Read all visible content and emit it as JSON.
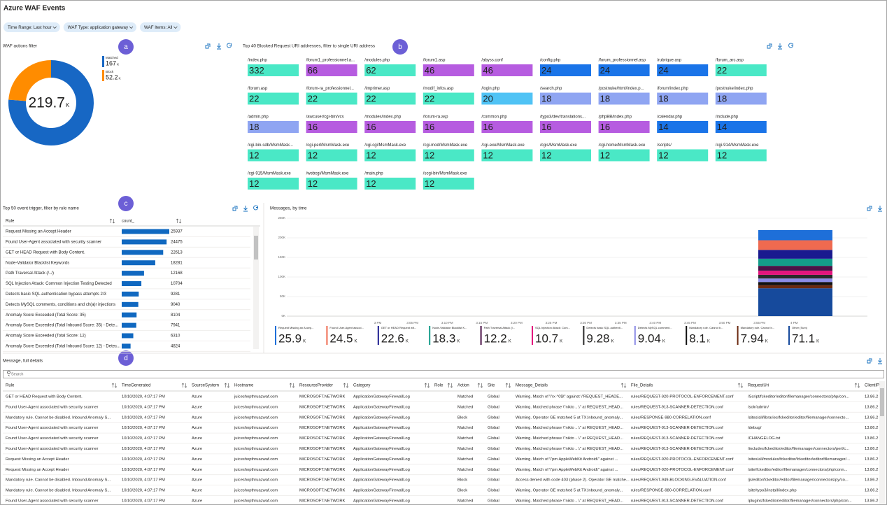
{
  "header": {
    "title": "Azure WAF Events",
    "filters": [
      "Time Range: Last hour",
      "WAF Type: application gateway",
      "WAF Items: All"
    ]
  },
  "markers": [
    "a",
    "b",
    "c",
    "d"
  ],
  "waf_actions": {
    "title": "WAF actions filter",
    "total": 219.7,
    "unit": "K",
    "items": [
      {
        "label": "Matched",
        "value": 167,
        "color": "#1767c4"
      },
      {
        "label": "Block",
        "value": 52.2,
        "color": "#ff8c00"
      }
    ]
  },
  "blocked_uris": {
    "title": "Top 40 Blocked Request URI addresses, filter to single URI address",
    "tiles": [
      {
        "uri": "/index.php",
        "count": 332,
        "color": "#4ae8c6"
      },
      {
        "uri": "/forum1_professionnel.a...",
        "count": 66,
        "color": "#b65ce0"
      },
      {
        "uri": "/modules.php",
        "count": 62,
        "color": "#4ae8c6"
      },
      {
        "uri": "/forum1.asp",
        "count": 46,
        "color": "#b65ce0"
      },
      {
        "uri": "/abyss.conf",
        "count": 46,
        "color": "#b65ce0"
      },
      {
        "uri": "/config.php",
        "count": 24,
        "color": "#1a74e8"
      },
      {
        "uri": "/forum_professionnel.asp",
        "count": 24,
        "color": "#1a74e8"
      },
      {
        "uri": "/rubrique.asp",
        "count": 24,
        "color": "#1a74e8"
      },
      {
        "uri": "/forum_arc.asp",
        "count": 22,
        "color": "#4ae8c6"
      },
      {
        "uri": "/forum.asp",
        "count": 22,
        "color": "#4ae8c6"
      },
      {
        "uri": "/forum-ra_professionnel...",
        "count": 22,
        "color": "#4ae8c6"
      },
      {
        "uri": "/imprimer.asp",
        "count": 22,
        "color": "#4ae8c6"
      },
      {
        "uri": "/modif_infos.asp",
        "count": 22,
        "color": "#4ae8c6"
      },
      {
        "uri": "/login.php",
        "count": 20,
        "color": "#50c3f5"
      },
      {
        "uri": "/search.php",
        "count": 18,
        "color": "#8fa5f2"
      },
      {
        "uri": "/postnuke/html/index.p...",
        "count": 18,
        "color": "#8fa5f2"
      },
      {
        "uri": "/forum/index.php",
        "count": 18,
        "color": "#8fa5f2"
      },
      {
        "uri": "/postnuke/index.php",
        "count": 18,
        "color": "#8fa5f2"
      },
      {
        "uri": "/admin.php",
        "count": 18,
        "color": "#8fa5f2"
      },
      {
        "uri": "/awcuser/cgi-bin/vcs",
        "count": 16,
        "color": "#b65ce0"
      },
      {
        "uri": "/modules/index.php",
        "count": 16,
        "color": "#b65ce0"
      },
      {
        "uri": "/forum-ra.asp",
        "count": 16,
        "color": "#b65ce0"
      },
      {
        "uri": "/common.php",
        "count": 16,
        "color": "#b65ce0"
      },
      {
        "uri": "/typo3/dev/translations...",
        "count": 16,
        "color": "#b65ce0"
      },
      {
        "uri": "/phpBB/index.php",
        "count": 16,
        "color": "#b65ce0"
      },
      {
        "uri": "/calendar.php",
        "count": 14,
        "color": "#1a74e8"
      },
      {
        "uri": "/include.php",
        "count": 14,
        "color": "#1a74e8"
      },
      {
        "uri": "/cgi-bin-sdb/MsmMask...",
        "count": 12,
        "color": "#4ae8c6"
      },
      {
        "uri": "/cgi-perl/MsmMask.exe",
        "count": 12,
        "color": "#4ae8c6"
      },
      {
        "uri": "/cgi.cgi/MsmMask.exe",
        "count": 12,
        "color": "#4ae8c6"
      },
      {
        "uri": "/cgi-mod/MsmMask.exe",
        "count": 12,
        "color": "#4ae8c6"
      },
      {
        "uri": "/cgi-exe/MsmMask.exe",
        "count": 12,
        "color": "#4ae8c6"
      },
      {
        "uri": "/cgis/MsmMask.exe",
        "count": 12,
        "color": "#4ae8c6"
      },
      {
        "uri": "/cgi-home/MsmMask.exe",
        "count": 12,
        "color": "#4ae8c6"
      },
      {
        "uri": "/scripts/",
        "count": 12,
        "color": "#4ae8c6"
      },
      {
        "uri": "/cgi-914/MsmMask.exe",
        "count": 12,
        "color": "#4ae8c6"
      },
      {
        "uri": "/cgi-915/MsmMask.exe",
        "count": 12,
        "color": "#4ae8c6"
      },
      {
        "uri": "/webcgi/MsmMask.exe",
        "count": 12,
        "color": "#4ae8c6"
      },
      {
        "uri": "/main.php",
        "count": 12,
        "color": "#4ae8c6"
      },
      {
        "uri": "/scgi-bin/MsmMask.exe",
        "count": 12,
        "color": "#4ae8c6"
      }
    ]
  },
  "event_triggers": {
    "title": "Top 50 event trigger, filter by rule name",
    "columns": [
      "Rule",
      "count_"
    ],
    "bar_color": "#1068c0",
    "rows": [
      [
        "Request Missing an Accept Header",
        25937
      ],
      [
        "Found User-Agent associated with security scanner",
        24475
      ],
      [
        "GET or HEAD Request with Body Content.",
        22613
      ],
      [
        "Node-Validator Blacklist Keywords",
        18281
      ],
      [
        "Path Traversal Attack (/../)",
        12168
      ],
      [
        "SQL Injection Attack: Common Injection Testing Detected",
        10704
      ],
      [
        "Detects basic SQL authentication bypass attempts 2/3",
        9281
      ],
      [
        "Detects MySQL comments, conditions and ch(a)r injections",
        9040
      ],
      [
        "Anomaly Score Exceeded (Total Score: 35)",
        8104
      ],
      [
        "Anomaly Score Exceeded (Total Inbound Score: 35) - Dete...",
        7941
      ],
      [
        "Anomaly Score Exceeded (Total Score: 12)",
        6310
      ],
      [
        "Anomaly Score Exceeded (Total Inbound Score: 12) - Detec...",
        4824
      ]
    ]
  },
  "messages_chart": {
    "type": "bar",
    "title": "Messages, by time",
    "unit": "K",
    "ylim": [
      0,
      250
    ],
    "yticks": [
      {
        "value": 0,
        "label": "0K"
      },
      {
        "value": 50,
        "label": "50K"
      },
      {
        "value": 100,
        "label": "100K"
      },
      {
        "value": 150,
        "label": "150K"
      },
      {
        "value": 200,
        "label": "200K"
      },
      {
        "value": 250,
        "label": "250K"
      }
    ],
    "x_ticks": [
      "3 PM",
      "3:05 PM",
      "3:10 PM",
      "3:15 PM",
      "3:20 PM",
      "3:25 PM",
      "3:30 PM",
      "3:35 PM",
      "3:40 PM",
      "3:45 PM",
      "3:50 PM",
      "3:55 PM",
      "4 PM"
    ],
    "grid": true,
    "series": [
      {
        "name": "Request Missing an Accep...",
        "color": "#1e6fd9",
        "value": 25.9
      },
      {
        "name": "Found User-Agent associ...",
        "color": "#ef6a50",
        "value": 24.5
      },
      {
        "name": "GET or HEAD Request wit...",
        "color": "#1a1a8f",
        "value": 22.6
      },
      {
        "name": "Node-Validator Blacklist K...",
        "color": "#139c8a",
        "value": 18.3
      },
      {
        "name": "Path Traversal Attack (/...",
        "color": "#4b1248",
        "value": 12.2
      },
      {
        "name": "SQL Injection Attack: Com...",
        "color": "#e3157d",
        "value": 10.7
      },
      {
        "name": "Detects basic SQL authenti...",
        "color": "#2a2a2a",
        "value": 9.28
      },
      {
        "name": "Detects MySQL comment...",
        "color": "#8c8ce6",
        "value": 9.04
      },
      {
        "name": "Mandatory rule. Cannot b...",
        "color": "#111111",
        "value": 8.1
      },
      {
        "name": "Mandatory rule. Cannot b...",
        "color": "#6b2a10",
        "value": 7.94
      },
      {
        "name": "Other (Sum)",
        "color": "#164a9c",
        "value": 71.1
      }
    ]
  },
  "details": {
    "title": "Message, full details",
    "search_placeholder": "Search",
    "columns": [
      "Rule",
      "TimeGenerated",
      "SourceSystem",
      "Hostname",
      "ResourceProvider",
      "Category",
      "Role",
      "Action",
      "Site",
      "Message_Details",
      "File_Details",
      "RequestUri",
      "ClientIP"
    ],
    "rows": [
      [
        "GET or HEAD Request with Body Content.",
        "10/10/2020, 4:07:17 PM",
        "Azure",
        "juiceshopthruazwaf.com",
        "MICROSOFT.NETWORK",
        "ApplicationGatewayFirewallLog",
        null,
        "Matched",
        "Global",
        "Warning. Match of \\\"rx ^0$\\\" against \\\"REQUEST_HEADE...",
        "rules/REQUEST-920-PROTOCOL-ENFORCEMENT.conf",
        "/Script/fckeditor/editor/filemanager/connectors/php/con...",
        "13.86.2"
      ],
      [
        "Found User-Agent associated with security scanner",
        "10/10/2020, 4:07:17 PM",
        "Azure",
        "juiceshopthruazwaf.com",
        "MICROSOFT.NETWORK",
        "ApplicationGatewayFirewallLog",
        null,
        "Matched",
        "Global",
        "Warning. Matched phrase \\\"nikto ...\\\" at REQUEST_HEAD...",
        "rules/REQUEST-913-SCANNER-DETECTION.conf",
        "/solr/admin/",
        "13.86.2"
      ],
      [
        "Mandatory rule. Cannot be disabled. Inbound Anomaly S...",
        "10/10/2020, 4:07:17 PM",
        "Azure",
        "juiceshopthruazwaf.com",
        "MICROSOFT.NETWORK",
        "ApplicationGatewayFirewallLog",
        null,
        "Block",
        "Global",
        "Warning. Operator GE matched 5 at TX:inbound_anomaly...",
        "rules/RESPONSE-980-CORRELATION.conf",
        "/sites/all/libraries/fckeditor/editor/filemanager/connecto...",
        "13.86.2"
      ],
      [
        "Found User-Agent associated with security scanner",
        "10/10/2020, 4:07:17 PM",
        "Azure",
        "juiceshopthruazwaf.com",
        "MICROSOFT.NETWORK",
        "ApplicationGatewayFirewallLog",
        null,
        "Matched",
        "Global",
        "Warning. Matched phrase \\\"nikto ...\\\" at REQUEST_HEAD...",
        "rules/REQUEST-913-SCANNER-DETECTION.conf",
        "/debug/",
        "13.86.2"
      ],
      [
        "Found User-Agent associated with security scanner",
        "10/10/2020, 4:07:17 PM",
        "Azure",
        "juiceshopthruazwaf.com",
        "MICROSOFT.NETWORK",
        "ApplicationGatewayFirewallLog",
        null,
        "Matched",
        "Global",
        "Warning. Matched phrase \\\"nikto ...\\\" at REQUEST_HEAD...",
        "rules/REQUEST-913-SCANNER-DETECTION.conf",
        "/CHANGELOG.txt",
        "13.86.2"
      ],
      [
        "Found User-Agent associated with security scanner",
        "10/10/2020, 4:07:17 PM",
        "Azure",
        "juiceshopthruazwaf.com",
        "MICROSOFT.NETWORK",
        "ApplicationGatewayFirewallLog",
        null,
        "Matched",
        "Global",
        "Warning. Matched phrase \\\"nikto ...\\\" at REQUEST_HEAD...",
        "rules/REQUEST-913-SCANNER-DETECTION.conf",
        "/includes/fckeditor/editor/filemanager/connectors/perl/c...",
        "13.86.2"
      ],
      [
        "Request Missing an Accept Header",
        "10/10/2020, 4:07:17 PM",
        "Azure",
        "juiceshopthruazwaf.com",
        "MICROSOFT.NETWORK",
        "ApplicationGatewayFirewallLog",
        null,
        "Matched",
        "Global",
        "Warning. Match of \\\"pm AppleWebKit Android\\\" against ...",
        "rules/REQUEST-920-PROTOCOL-ENFORCEMENT.conf",
        "/sites/all/modules/fckeditor/fckeditor/editor/filemanager/...",
        "13.86.2"
      ],
      [
        "Request Missing an Accept Header",
        "10/10/2020, 4:07:17 PM",
        "Azure",
        "juiceshopthruazwaf.com",
        "MICROSOFT.NETWORK",
        "ApplicationGatewayFirewallLog",
        null,
        "Matched",
        "Global",
        "Warning. Match of \\\"pm AppleWebKit Android\\\" against ...",
        "rules/REQUEST-920-PROTOCOL-ENFORCEMENT.conf",
        "/site/fckeditor/editor/filemanager/connectors/php/conn...",
        "13.86.2"
      ],
      [
        "Mandatory rule. Cannot be disabled. Inbound Anomaly S...",
        "10/10/2020, 4:07:17 PM",
        "Azure",
        "juiceshopthruazwaf.com",
        "MICROSOFT.NETWORK",
        "ApplicationGatewayFirewallLog",
        null,
        "Block",
        "Global",
        "Access denied with code 403 (phase 2). Operator GE matche...",
        "rules/REQUEST-949-BLOCKING-EVALUATION.conf",
        "/js/editor/fckeditor/editor/filemanager/connectors/py/co...",
        "13.86.2"
      ],
      [
        "Mandatory rule. Cannot be disabled. Inbound Anomaly S...",
        "10/10/2020, 4:07:17 PM",
        "Azure",
        "juiceshopthruazwaf.com",
        "MICROSOFT.NETWORK",
        "ApplicationGatewayFirewallLog",
        null,
        "Block",
        "Global",
        "Warning. Operator GE matched 5 at TX:inbound_anomaly...",
        "rules/RESPONSE-980-CORRELATION.conf",
        "/site/typo3/install/index.php",
        "13.86.2"
      ],
      [
        "Found User-Agent associated with security scanner",
        "10/10/2020, 4:07:17 PM",
        "Azure",
        "juiceshopthruazwaf.com",
        "MICROSOFT.NETWORK",
        "ApplicationGatewayFirewallLog",
        null,
        "Matched",
        "Global",
        "Warning. Matched phrase \\\"nikto ...\\\" at REQUEST_HEAD...",
        "rules/REQUEST-913-SCANNER-DETECTION.conf",
        "/plugins/fckeditor/editor/filemanager/connectors/php/con...",
        "13.86.2"
      ]
    ]
  }
}
